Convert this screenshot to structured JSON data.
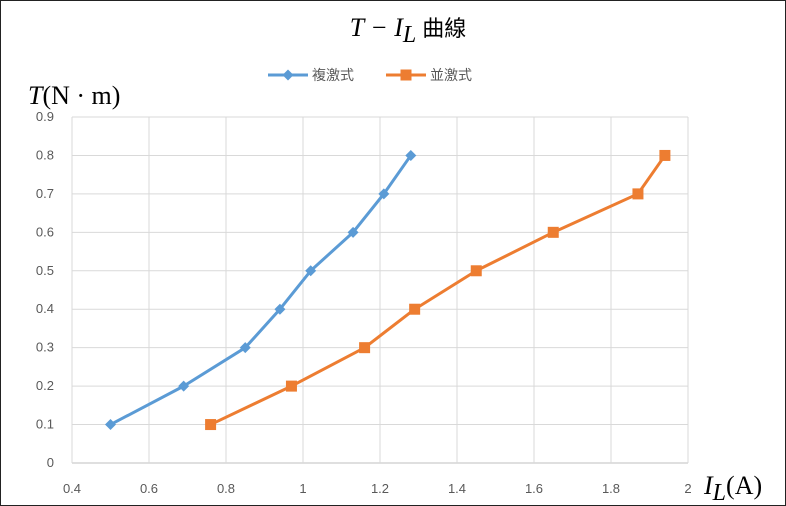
{
  "chart_data": {
    "type": "line",
    "title": {
      "main": "T − I",
      "sub": "L",
      "suffix": "曲線"
    },
    "ylabel": {
      "symbol": "T",
      "unit": "(N · m)"
    },
    "xlabel": {
      "symbol": "I",
      "sub": "L",
      "unit": "(A)"
    },
    "xlim": [
      0.4,
      2
    ],
    "ylim": [
      0,
      0.9
    ],
    "x_ticks": [
      "0.4",
      "0.6",
      "0.8",
      "1",
      "1.2",
      "1.4",
      "1.6",
      "1.8",
      "2"
    ],
    "y_ticks": [
      "0",
      "0.1",
      "0.2",
      "0.3",
      "0.4",
      "0.5",
      "0.6",
      "0.7",
      "0.8",
      "0.9"
    ],
    "grid": true,
    "legend_position": "top",
    "series": [
      {
        "name": "複激式",
        "color": "#5B9BD5",
        "marker": "diamond",
        "x": [
          0.5,
          0.69,
          0.85,
          0.94,
          1.02,
          1.13,
          1.21,
          1.28
        ],
        "y": [
          0.1,
          0.2,
          0.3,
          0.4,
          0.5,
          0.6,
          0.7,
          0.8
        ]
      },
      {
        "name": "並激式",
        "color": "#ED7D31",
        "marker": "square",
        "x": [
          0.76,
          0.97,
          1.16,
          1.29,
          1.45,
          1.65,
          1.87,
          1.94
        ],
        "y": [
          0.1,
          0.2,
          0.3,
          0.4,
          0.5,
          0.6,
          0.7,
          0.8
        ]
      }
    ]
  }
}
